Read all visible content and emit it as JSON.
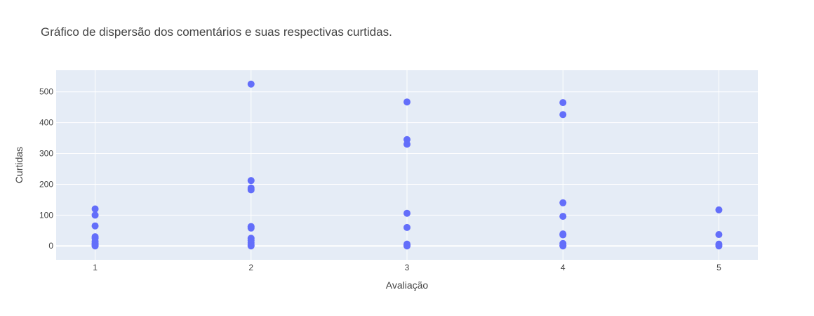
{
  "chart_data": {
    "type": "scatter",
    "title": "Gráfico de dispersão dos comentários e suas respectivas curtidas.",
    "xlabel": "Avaliação",
    "ylabel": "Curtidas",
    "xlim": [
      0.75,
      5.25
    ],
    "ylim": [
      -45,
      570
    ],
    "xticks": [
      1,
      2,
      3,
      4,
      5
    ],
    "yticks": [
      0,
      100,
      200,
      300,
      400,
      500
    ],
    "grid": true,
    "legend": "none",
    "marker_color": "#636efa",
    "plot_bg": "#e5ecf6",
    "series": [
      {
        "x": [
          1,
          1,
          1,
          1,
          1,
          1,
          1,
          1,
          1,
          1,
          2,
          2,
          2,
          2,
          2,
          2,
          2,
          2,
          2,
          2,
          2,
          3,
          3,
          3,
          3,
          3,
          3,
          3,
          3,
          4,
          4,
          4,
          4,
          4,
          4,
          4,
          4,
          4,
          5,
          5,
          5,
          5
        ],
        "y": [
          120,
          100,
          65,
          30,
          25,
          15,
          8,
          5,
          2,
          0,
          525,
          212,
          188,
          182,
          63,
          58,
          25,
          18,
          10,
          3,
          0,
          467,
          345,
          330,
          106,
          60,
          6,
          2,
          0,
          465,
          426,
          140,
          96,
          39,
          36,
          8,
          2,
          0,
          117,
          37,
          6,
          0
        ]
      }
    ]
  }
}
